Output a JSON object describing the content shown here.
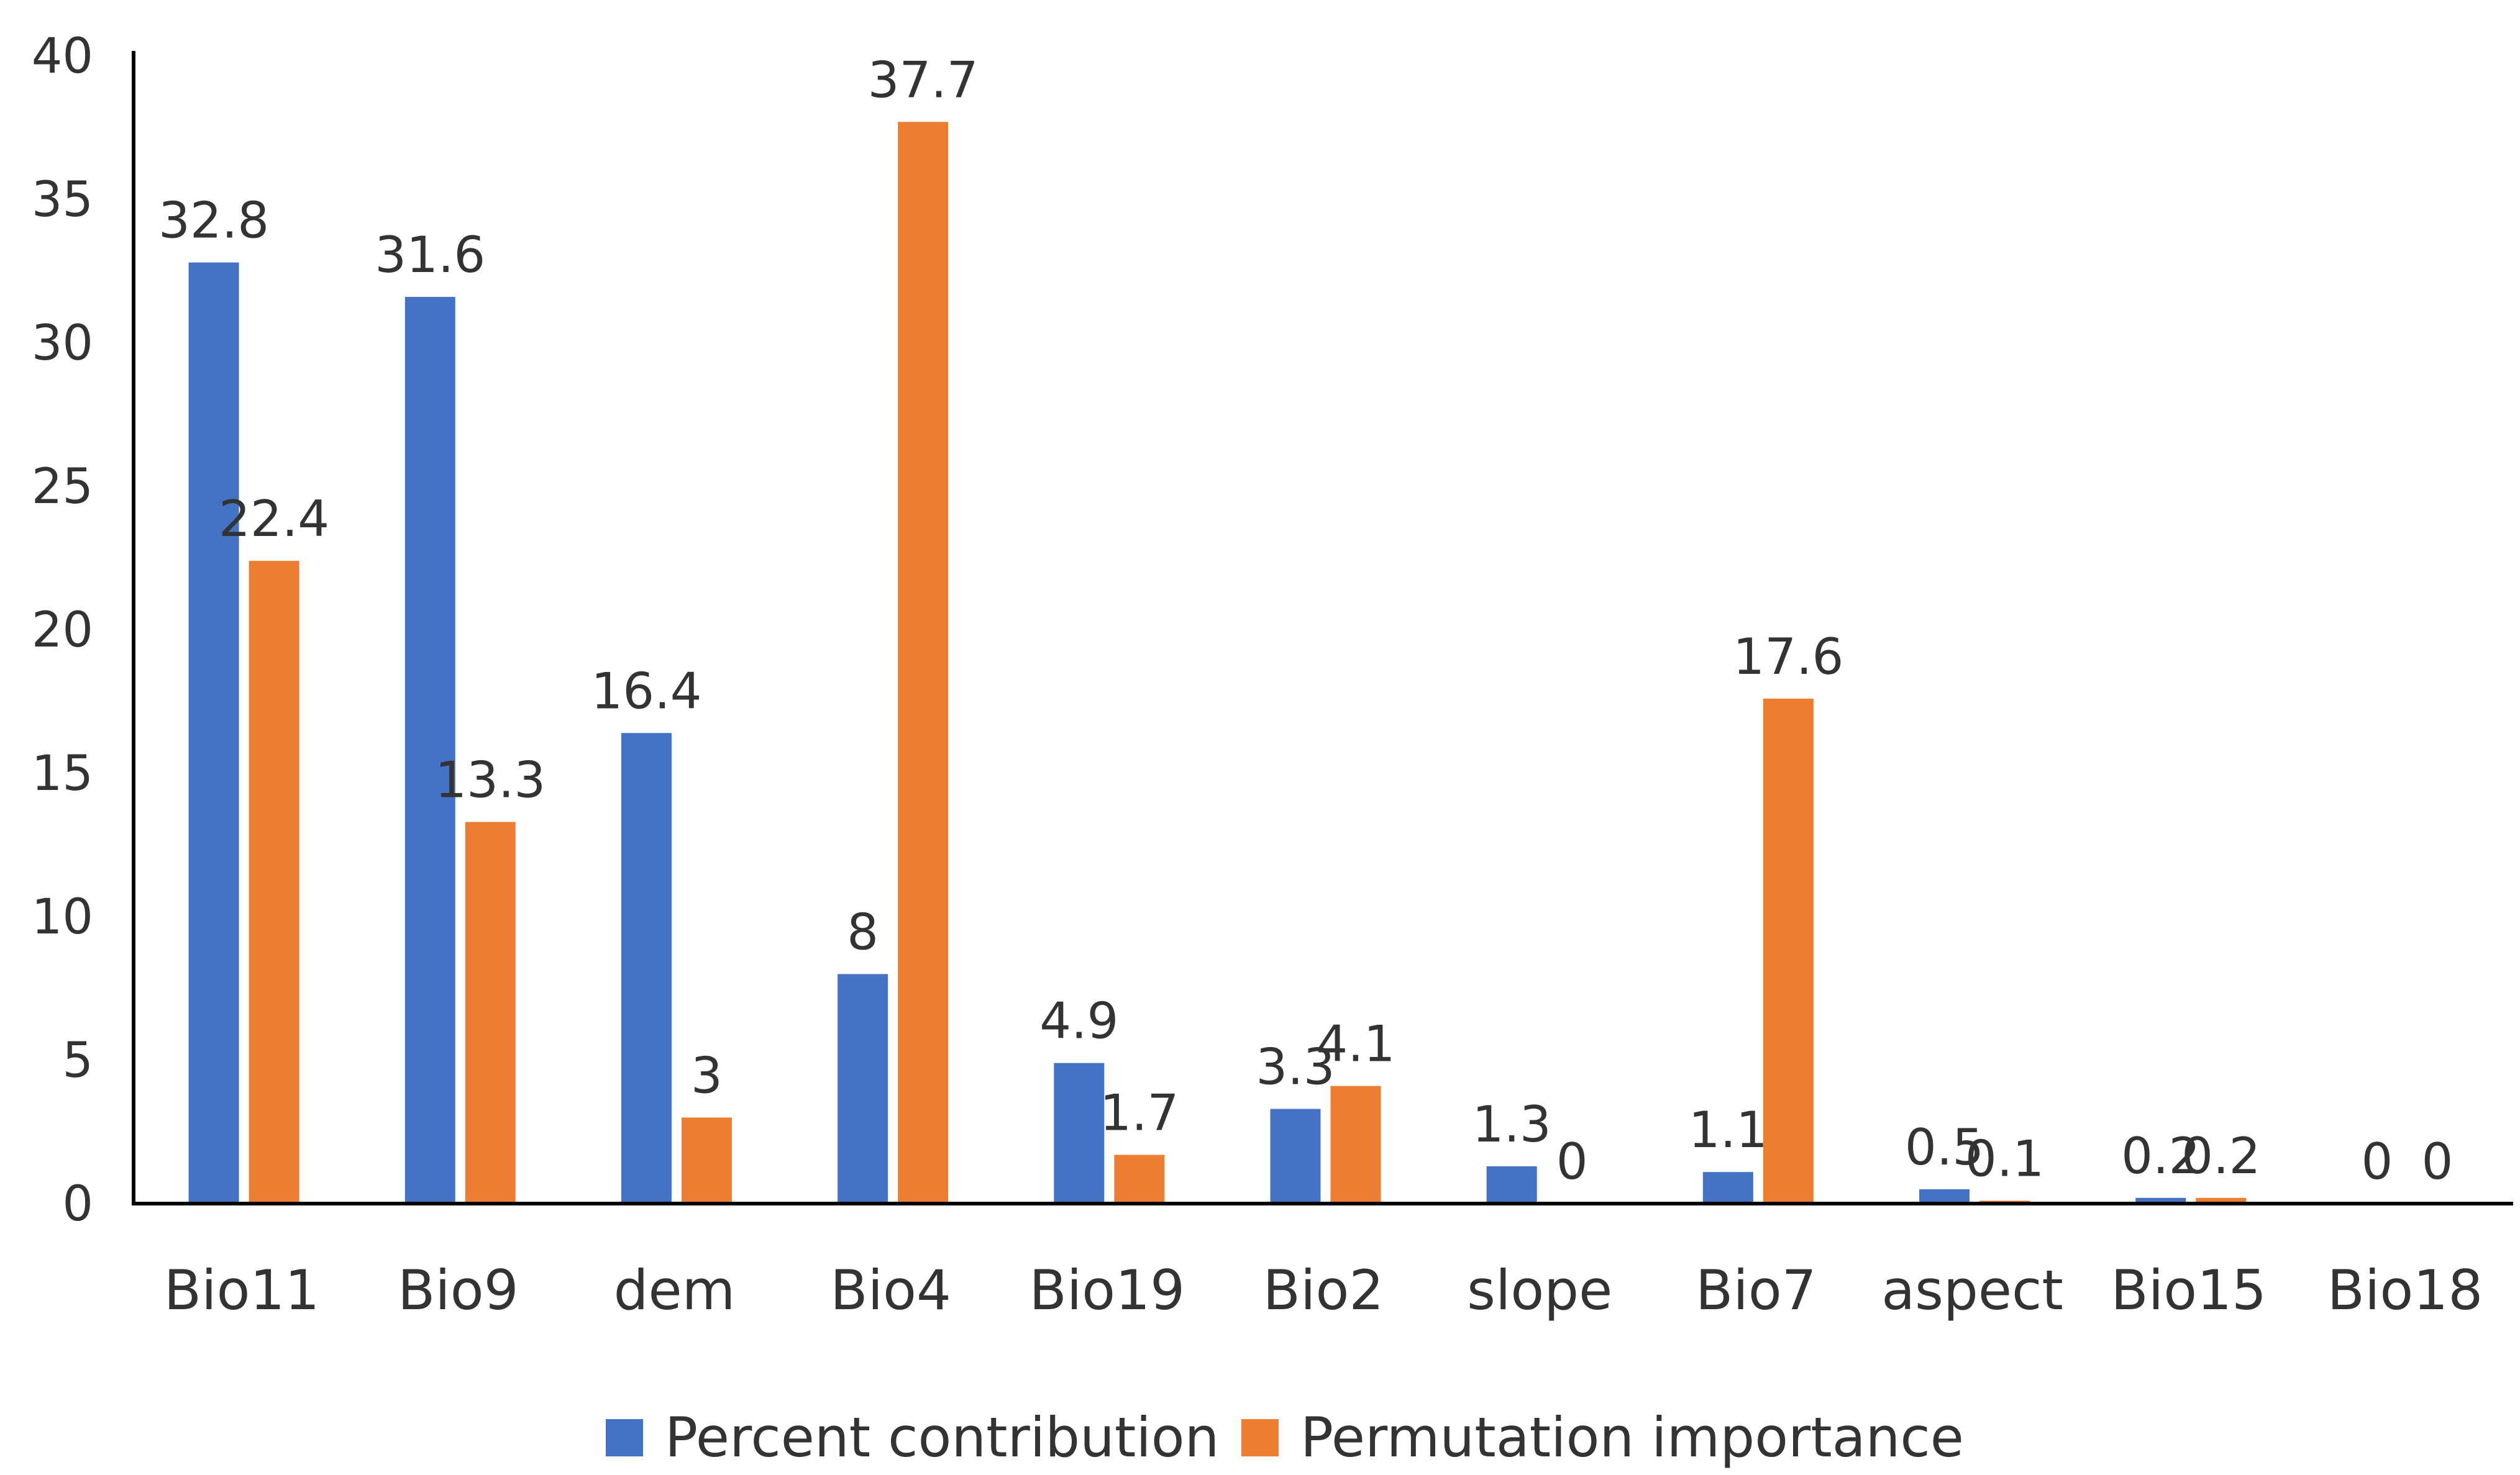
{
  "chart_data": {
    "type": "bar",
    "title": "",
    "xlabel": "",
    "ylabel": "",
    "ylim": [
      0,
      40
    ],
    "yticks": [
      0,
      5,
      10,
      15,
      20,
      25,
      30,
      35,
      40
    ],
    "grid": false,
    "legend_position": "bottom",
    "categories": [
      "Bio11",
      "Bio9",
      "dem",
      "Bio4",
      "Bio19",
      "Bio2",
      "slope",
      "Bio7",
      "aspect",
      "Bio15",
      "Bio18"
    ],
    "series": [
      {
        "name": "Percent contribution",
        "color": "#4472C4",
        "values": [
          32.8,
          31.6,
          16.4,
          8,
          4.9,
          3.3,
          1.3,
          1.1,
          0.5,
          0.2,
          0
        ],
        "labels": [
          "32.8",
          "31.6",
          "16.4",
          "8",
          "4.9",
          "3.3",
          "1.3",
          "1.1",
          "0.5",
          "0.2",
          "0"
        ]
      },
      {
        "name": "Permutation importance",
        "color": "#ED7D31",
        "values": [
          22.4,
          13.3,
          3,
          37.7,
          1.7,
          4.1,
          0,
          17.6,
          0.1,
          0.2,
          0
        ],
        "labels": [
          "22.4",
          "13.3",
          "3",
          "37.7",
          "1.7",
          "4.1",
          "0",
          "17.6",
          "0.1",
          "0.2",
          "0"
        ]
      }
    ]
  }
}
